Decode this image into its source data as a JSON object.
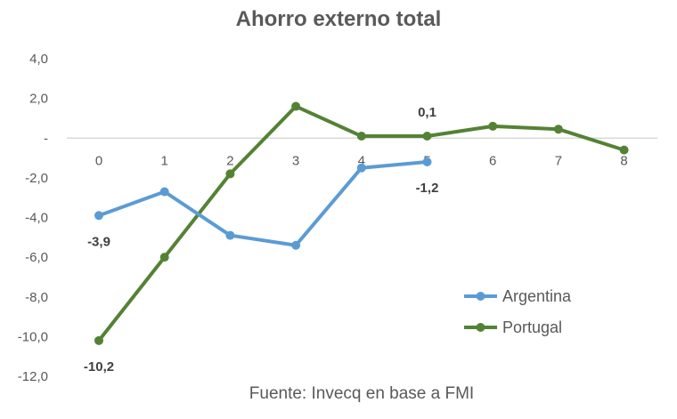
{
  "chart_data": {
    "type": "line",
    "title": "Ahorro externo total",
    "source": "Fuente: Invecq en base a FMI",
    "xlabel": "",
    "ylabel": "",
    "ylim": [
      -12,
      4
    ],
    "yticks": [
      4,
      2,
      0,
      -2,
      -4,
      -6,
      -8,
      -10,
      -12
    ],
    "ytick_labels": [
      "4,0",
      "2,0",
      "-",
      "-2,0",
      "-4,0",
      "-6,0",
      "-8,0",
      "-10,0",
      "-12,0"
    ],
    "categories": [
      "0",
      "1",
      "2",
      "3",
      "4",
      "5",
      "6",
      "7",
      "8"
    ],
    "series": [
      {
        "name": "Argentina",
        "color": "#5b9bd5",
        "x": [
          0,
          1,
          2,
          3,
          4,
          5
        ],
        "values": [
          -3.9,
          -2.7,
          -4.9,
          -5.4,
          -1.5,
          -1.2
        ],
        "labels": [
          {
            "index": 0,
            "text": "-3,9",
            "place": "below"
          },
          {
            "index": 5,
            "text": "-1,2",
            "place": "below"
          }
        ]
      },
      {
        "name": "Portugal",
        "color": "#548235",
        "x": [
          0,
          1,
          2,
          3,
          4,
          5,
          6,
          7,
          8
        ],
        "values": [
          -10.2,
          -6.0,
          -1.8,
          1.6,
          0.1,
          0.1,
          0.6,
          0.45,
          -0.6
        ],
        "labels": [
          {
            "index": 0,
            "text": "-10,2",
            "place": "below"
          },
          {
            "index": 5,
            "text": "0,1",
            "place": "above"
          }
        ]
      }
    ],
    "legend": "right"
  }
}
